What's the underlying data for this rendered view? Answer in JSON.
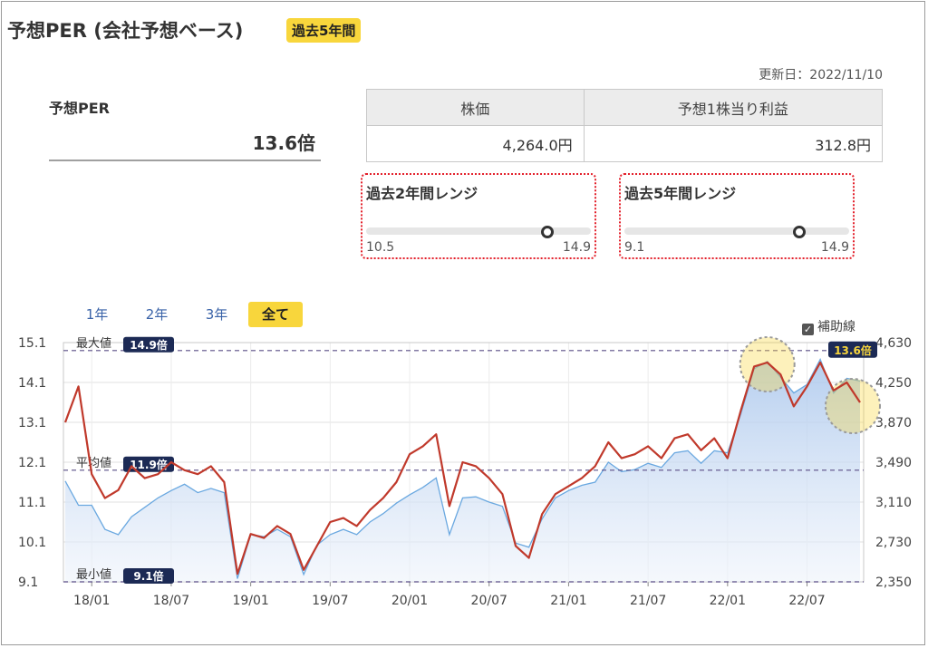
{
  "title": "予想PER (会社予想ベース)",
  "badge": "過去5年間",
  "updated": "更新日：2022/11/10",
  "per": {
    "label": "予想PER",
    "value": "13.6倍"
  },
  "table": {
    "headers": [
      "株価",
      "予想1株当り利益"
    ],
    "values": [
      "4,264.0円",
      "312.8円"
    ]
  },
  "ranges": [
    {
      "title": "過去2年間レンジ",
      "min": "10.5",
      "max": "14.9",
      "position": 0.8
    },
    {
      "title": "過去5年間レンジ",
      "min": "9.1",
      "max": "14.9",
      "position": 0.77
    }
  ],
  "tabs": [
    "1年",
    "2年",
    "3年",
    "全て"
  ],
  "active_tab": "全て",
  "helper_label": "補助線",
  "colors": {
    "per_line": "#c0392b",
    "price_line": "#6aa8e0",
    "accent": "#f8d63c",
    "ref_label_bg": "#1c2a55",
    "range_border": "#e3202b"
  },
  "chart_data": {
    "type": "line",
    "x": [
      "17/11",
      "17/12",
      "18/01",
      "18/02",
      "18/03",
      "18/04",
      "18/05",
      "18/06",
      "18/07",
      "18/08",
      "18/09",
      "18/10",
      "18/11",
      "18/12",
      "19/01",
      "19/02",
      "19/03",
      "19/04",
      "19/05",
      "19/06",
      "19/07",
      "19/08",
      "19/09",
      "19/10",
      "19/11",
      "19/12",
      "20/01",
      "20/02",
      "20/03",
      "20/04",
      "20/05",
      "20/06",
      "20/07",
      "20/08",
      "20/09",
      "20/10",
      "20/11",
      "20/12",
      "21/01",
      "21/02",
      "21/03",
      "21/04",
      "21/05",
      "21/06",
      "21/07",
      "21/08",
      "21/09",
      "21/10",
      "21/11",
      "21/12",
      "22/01",
      "22/02",
      "22/03",
      "22/04",
      "22/05",
      "22/06",
      "22/07",
      "22/08",
      "22/09",
      "22/10",
      "22/11"
    ],
    "x_tick_labels": [
      "18/01",
      "18/07",
      "19/01",
      "19/07",
      "20/01",
      "20/07",
      "21/01",
      "21/07",
      "22/01",
      "22/07"
    ],
    "series": [
      {
        "axis": "left",
        "values": [
          13.1,
          14.0,
          11.8,
          11.2,
          11.4,
          12.0,
          11.7,
          11.8,
          12.1,
          11.9,
          11.8,
          12.0,
          11.6,
          9.3,
          10.3,
          10.2,
          10.5,
          10.3,
          9.4,
          10.0,
          10.6,
          10.7,
          10.5,
          10.9,
          11.2,
          11.6,
          12.3,
          12.5,
          12.8,
          11.0,
          12.1,
          12.0,
          11.7,
          11.3,
          10.0,
          9.7,
          10.8,
          11.3,
          11.5,
          11.7,
          12.0,
          12.6,
          12.2,
          12.3,
          12.5,
          12.2,
          12.7,
          12.8,
          12.4,
          12.7,
          12.2,
          13.4,
          14.5,
          14.6,
          14.3,
          13.5,
          14.0,
          14.6,
          13.9,
          14.1,
          13.6
        ]
      },
      {
        "axis": "right",
        "values": [
          3310,
          3080,
          3080,
          2850,
          2800,
          2970,
          3060,
          3150,
          3220,
          3280,
          3200,
          3240,
          3200,
          2380,
          2800,
          2780,
          2850,
          2780,
          2420,
          2700,
          2800,
          2850,
          2800,
          2920,
          3000,
          3100,
          3180,
          3250,
          3340,
          2800,
          3150,
          3160,
          3110,
          3070,
          2720,
          2680,
          2950,
          3150,
          3220,
          3270,
          3300,
          3490,
          3400,
          3420,
          3480,
          3440,
          3580,
          3600,
          3480,
          3600,
          3580,
          3950,
          4380,
          4450,
          4300,
          4150,
          4230,
          4470,
          4150,
          4290,
          4264
        ]
      }
    ],
    "y_left": {
      "min": 9.1,
      "max": 15.1,
      "ticks": [
        "15.1",
        "14.1",
        "13.1",
        "12.1",
        "11.1",
        "10.1",
        "9.1"
      ]
    },
    "y_right": {
      "min": 2350,
      "max": 4630,
      "ticks": [
        "4,630",
        "4,250",
        "3,870",
        "3,490",
        "3,110",
        "2,730",
        "2,350"
      ]
    },
    "reference_lines": [
      {
        "label": "最大値",
        "value": 14.9,
        "tag": "14.9倍"
      },
      {
        "label": "平均値",
        "value": 11.9,
        "tag": "11.9倍"
      },
      {
        "label": "最小値",
        "value": 9.1,
        "tag": "9.1倍"
      }
    ],
    "current_tag": "13.6倍"
  }
}
